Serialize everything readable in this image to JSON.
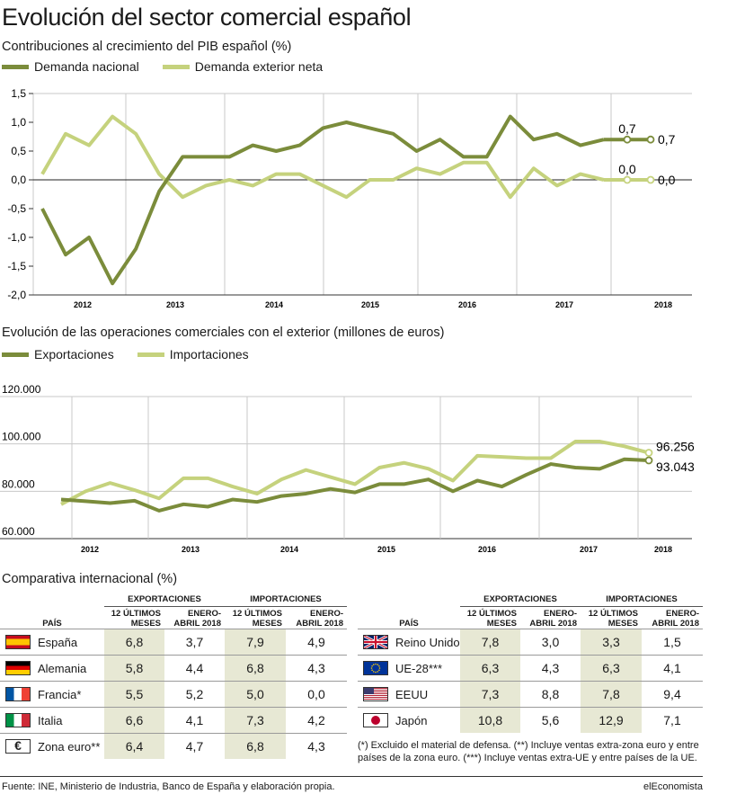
{
  "title": "Evolución del sector comercial español",
  "colors": {
    "dark_green": "#7b8c3b",
    "light_green": "#c5d27d",
    "table_shade": "#e7e8d4"
  },
  "chart_data": [
    {
      "type": "line",
      "title": "Contribuciones al crecimiento del PIB español (%)",
      "xlabel": "",
      "ylabel": "",
      "ylim": [
        -2.0,
        1.5
      ],
      "yticks": [
        "1,5",
        "1,0",
        "0,5",
        "0,0",
        "-0,5",
        "-1,0",
        "-1,5",
        "-2,0"
      ],
      "year_labels": [
        "2012",
        "2013",
        "2014",
        "2015",
        "2016",
        "2017",
        "2018"
      ],
      "grid": "vertical year separators",
      "legend": "top-left",
      "series": [
        {
          "name": "Demanda nacional",
          "values": [
            -0.5,
            -1.3,
            -1.0,
            -1.8,
            -1.2,
            -0.2,
            0.4,
            0.4,
            0.4,
            0.6,
            0.5,
            0.6,
            0.9,
            1.0,
            0.9,
            0.8,
            0.5,
            0.7,
            0.4,
            0.4,
            1.1,
            0.7,
            0.8,
            0.6,
            0.7,
            0.7,
            0.7
          ],
          "end_label": "0,7",
          "marker_label": "0,7"
        },
        {
          "name": "Demanda exterior neta",
          "values": [
            0.1,
            0.8,
            0.6,
            1.1,
            0.8,
            0.1,
            -0.3,
            -0.1,
            0.0,
            -0.1,
            0.1,
            0.1,
            -0.1,
            -0.3,
            0.0,
            0.0,
            0.2,
            0.1,
            0.3,
            0.3,
            -0.3,
            0.2,
            -0.1,
            0.1,
            0.0,
            0.0,
            0.0
          ],
          "end_label": "0,0",
          "marker_label": "0,0"
        }
      ]
    },
    {
      "type": "line",
      "title": "Evolución de las operaciones comerciales con el exterior (millones de euros)",
      "xlabel": "",
      "ylabel": "",
      "ylim": [
        60000,
        120000
      ],
      "yticks": [
        "120.000",
        "100.000",
        "80.000",
        "60.000"
      ],
      "year_labels": [
        "2012",
        "2013",
        "2014",
        "2015",
        "2016",
        "2017",
        "2018"
      ],
      "grid": "horizontal and vertical",
      "legend": "top-left",
      "series": [
        {
          "name": "Exportaciones",
          "values": [
            76500,
            75800,
            75000,
            76000,
            71800,
            74500,
            73500,
            76500,
            75500,
            78000,
            79000,
            81000,
            79500,
            83000,
            83000,
            85000,
            80000,
            84500,
            82000,
            87000,
            91500,
            90000,
            89500,
            93500,
            93043
          ],
          "end_label": "93.043"
        },
        {
          "name": "Importaciones",
          "values": [
            74500,
            80000,
            83500,
            80500,
            77000,
            85500,
            85500,
            82000,
            79000,
            85000,
            89000,
            86000,
            83000,
            90000,
            92000,
            89500,
            84500,
            95000,
            94500,
            94000,
            94000,
            101000,
            101000,
            99000,
            96256
          ],
          "end_label": "96.256"
        }
      ]
    }
  ],
  "comparison": {
    "title": "Comparativa internacional (%)",
    "headers": {
      "exports": "EXPORTACIONES",
      "imports": "IMPORTACIONES",
      "pais": "PAÍS",
      "last12_a": "12 ÚLTIMOS",
      "last12_b": "MESES",
      "janapr_a": "ENERO-",
      "janapr_b": "ABRIL 2018"
    },
    "left": [
      {
        "country": "España",
        "flag": "es",
        "values": [
          "6,8",
          "3,7",
          "7,9",
          "4,9"
        ]
      },
      {
        "country": "Alemania",
        "flag": "de",
        "values": [
          "5,8",
          "4,4",
          "6,8",
          "4,3"
        ]
      },
      {
        "country": "Francia*",
        "flag": "fr",
        "values": [
          "5,5",
          "5,2",
          "5,0",
          "0,0"
        ]
      },
      {
        "country": "Italia",
        "flag": "it",
        "values": [
          "6,6",
          "4,1",
          "7,3",
          "4,2"
        ]
      },
      {
        "country": "Zona euro**",
        "flag": "euro",
        "values": [
          "6,4",
          "4,7",
          "6,8",
          "4,3"
        ]
      }
    ],
    "right": [
      {
        "country": "Reino Unido",
        "flag": "uk",
        "values": [
          "7,8",
          "3,0",
          "3,3",
          "1,5"
        ]
      },
      {
        "country": "UE-28***",
        "flag": "eu",
        "values": [
          "6,3",
          "4,3",
          "6,3",
          "4,1"
        ]
      },
      {
        "country": "EEUU",
        "flag": "us",
        "values": [
          "7,3",
          "8,8",
          "7,8",
          "9,4"
        ]
      },
      {
        "country": "Japón",
        "flag": "jp",
        "values": [
          "10,8",
          "5,6",
          "12,9",
          "7,1"
        ]
      }
    ],
    "note": "(*) Excluido el material de defensa. (**) Incluye ventas extra-zona euro y entre países de la zona euro. (***) Incluye ventas extra-UE y entre países de la UE."
  },
  "footer": {
    "source": "Fuente: INE, Ministerio de Industria, Banco de España y elaboración propia.",
    "brand": "elEconomista"
  }
}
